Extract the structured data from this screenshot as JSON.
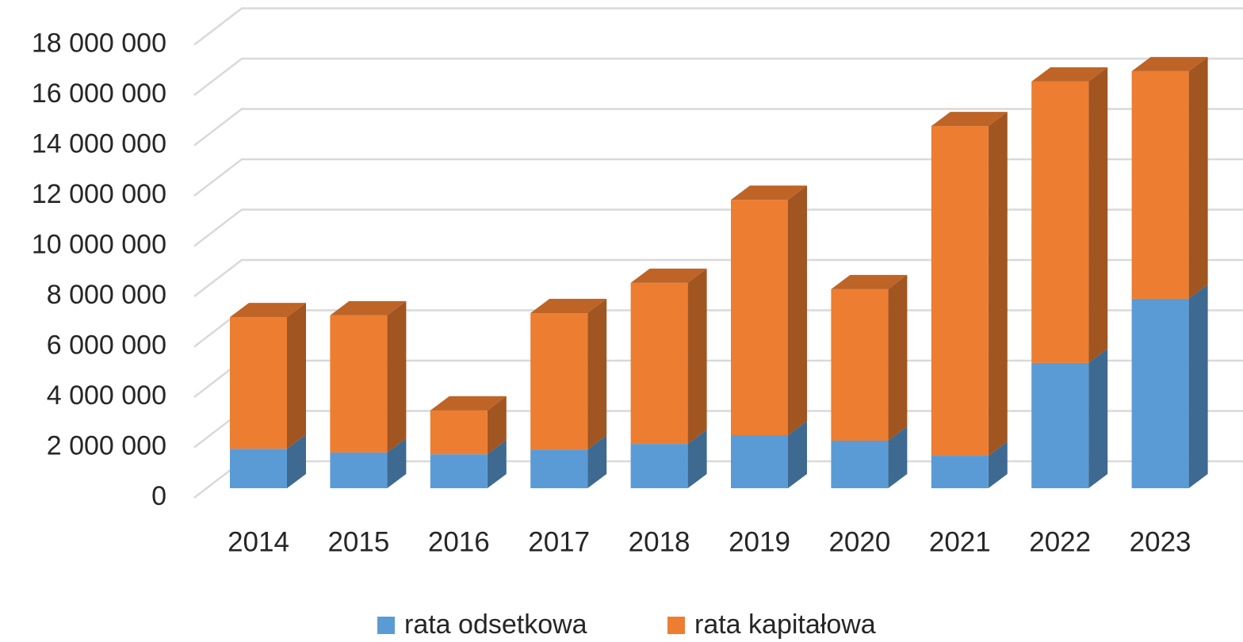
{
  "chart_data": {
    "type": "bar3d_stacked",
    "categories": [
      "2014",
      "2015",
      "2016",
      "2017",
      "2018",
      "2019",
      "2020",
      "2021",
      "2022",
      "2023"
    ],
    "series": [
      {
        "name": "rata odsetkowa",
        "color": "#5b9bd5",
        "values": [
          1570000,
          1420000,
          1350000,
          1540000,
          1760000,
          2110000,
          1890000,
          1290000,
          4980000,
          7530000
        ]
      },
      {
        "name": "rata kapitałowa",
        "color": "#ed7d31",
        "values": [
          5230000,
          5450000,
          1740000,
          5420000,
          6400000,
          9350000,
          6020000,
          13100000,
          11180000,
          9040000
        ]
      }
    ],
    "ylim": [
      0,
      20000000
    ],
    "yticks": [
      0,
      {
        "value": 2000000,
        "label": "2 000 000"
      },
      {
        "value": 4000000,
        "label": "4 000 000"
      },
      {
        "value": 6000000,
        "label": "6 000 000"
      },
      {
        "value": 8000000,
        "label": "8 000 000"
      },
      {
        "value": 10000000,
        "label": "10 000 000"
      },
      {
        "value": 12000000,
        "label": "12 000 000"
      },
      {
        "value": 14000000,
        "label": "14 000 000"
      },
      {
        "value": 16000000,
        "label": "16 000 000"
      },
      {
        "value": 18000000,
        "label": "18 000 000"
      }
    ],
    "grid": true,
    "legend": "bottom"
  }
}
